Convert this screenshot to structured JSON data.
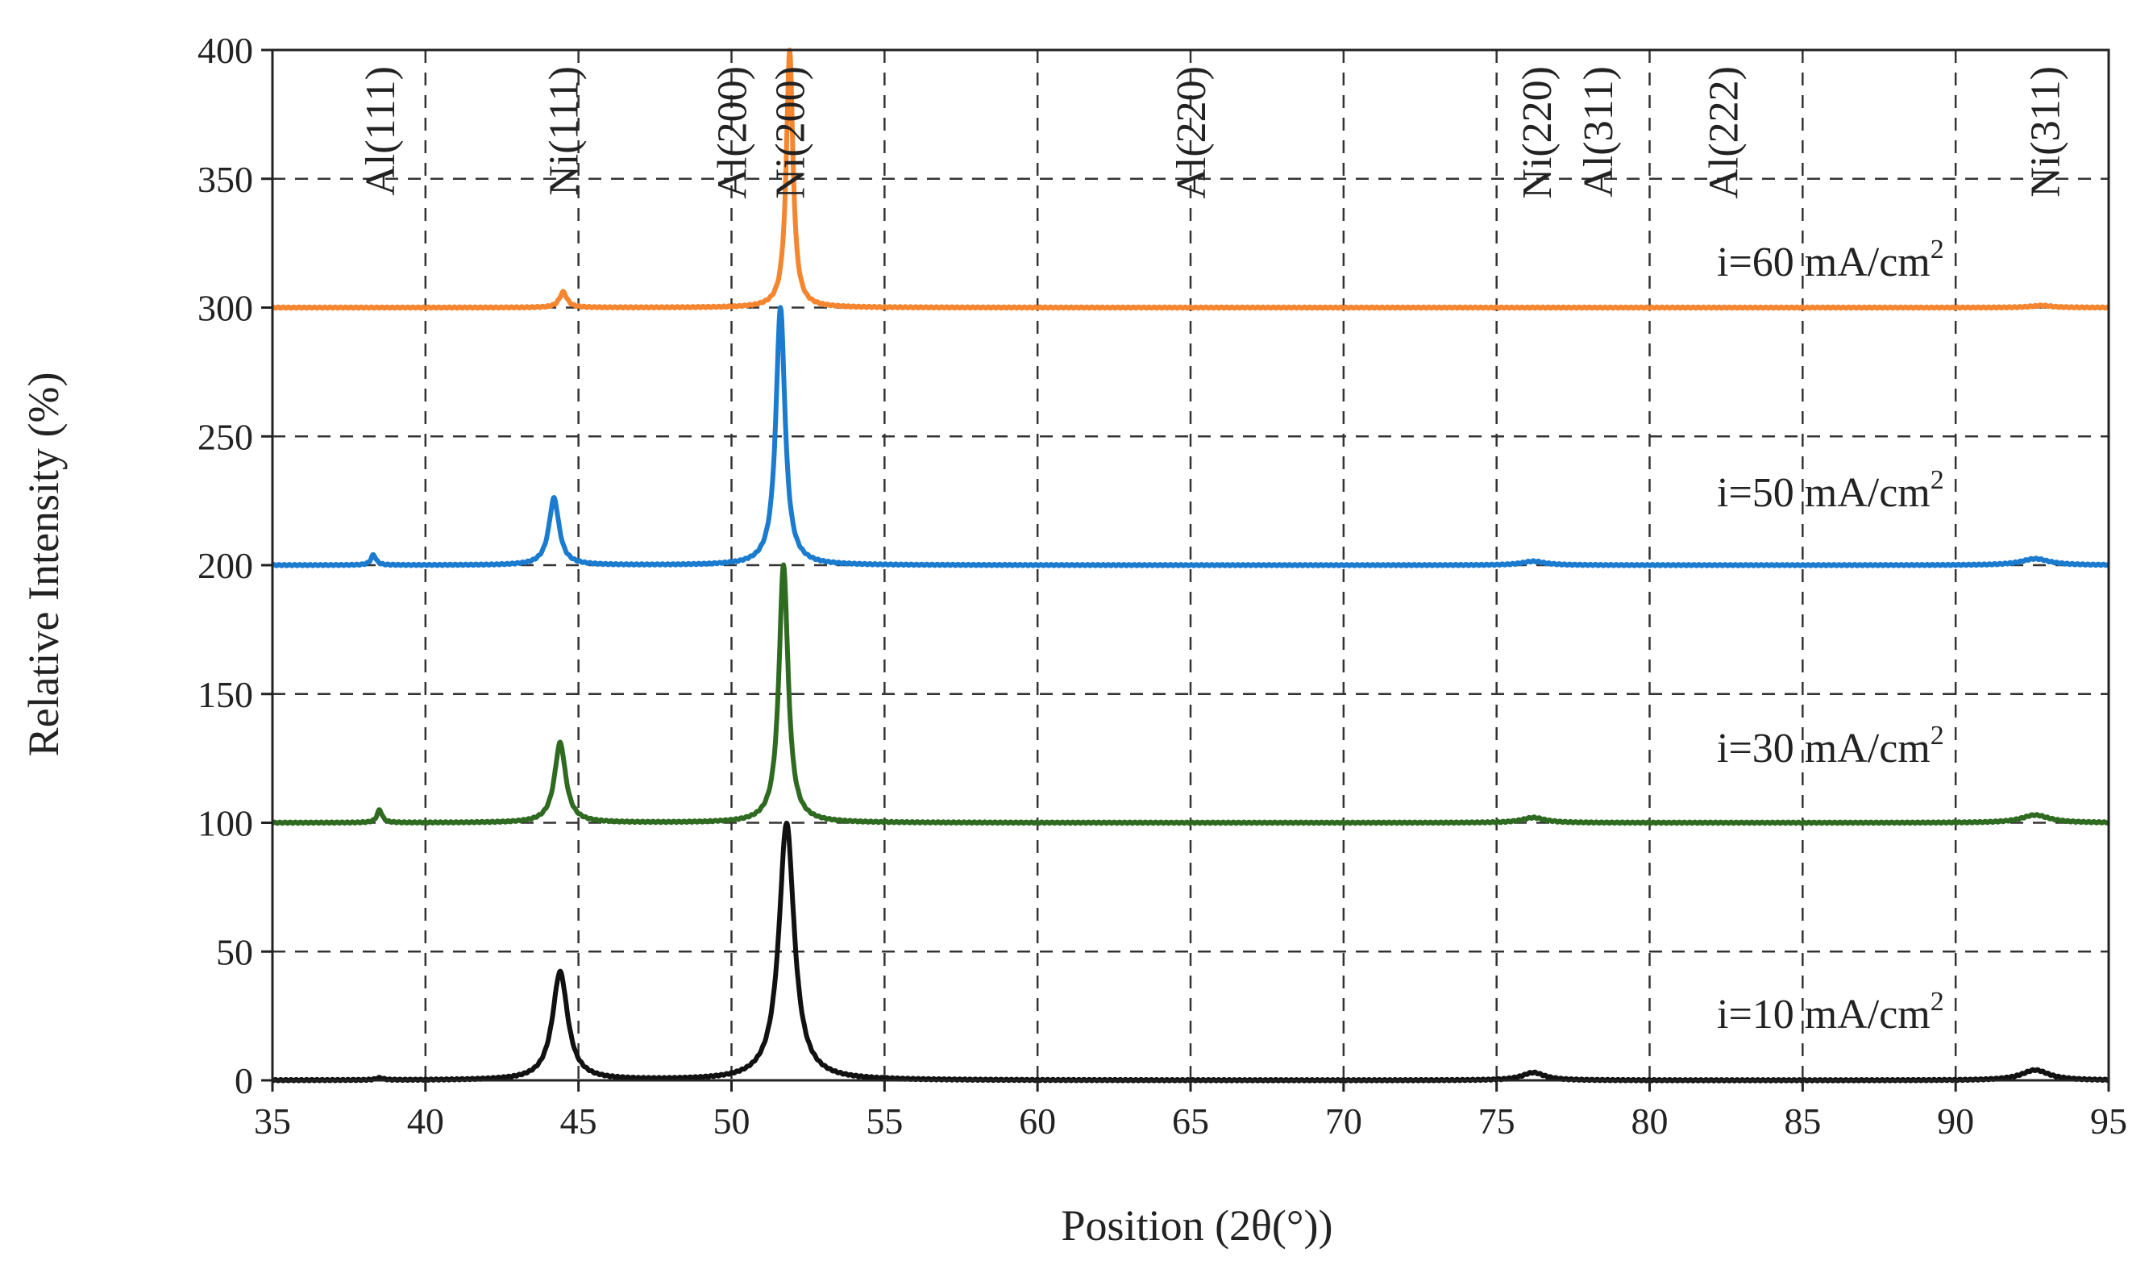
{
  "chart_data": {
    "type": "line",
    "title": "",
    "xlabel": "Position (2θ(°))",
    "ylabel": "Relative  Intensity (%)",
    "xlim": [
      35,
      95
    ],
    "ylim": [
      0,
      400
    ],
    "xticks": [
      35,
      40,
      45,
      50,
      55,
      60,
      65,
      70,
      75,
      80,
      85,
      90,
      95
    ],
    "yticks": [
      0,
      50,
      100,
      150,
      200,
      250,
      300,
      350,
      400
    ],
    "grid": "dashed",
    "reference_lines": [
      {
        "label": "Al(111)",
        "x": 38.5
      },
      {
        "label": "Ni(111)",
        "x": 44.5
      },
      {
        "label": "Al(200)",
        "x": 50.0
      },
      {
        "label": "Ni(200)",
        "x": 51.9
      },
      {
        "label": "Al(220)",
        "x": 65.0
      },
      {
        "label": "Ni(220)",
        "x": 76.3
      },
      {
        "label": "Al(311)",
        "x": 78.3
      },
      {
        "label": "Al(222)",
        "x": 82.4
      },
      {
        "label": "Ni(311)",
        "x": 92.9
      }
    ],
    "series": [
      {
        "name": "i=10 mA/cm2",
        "label_main": "i=10 mA/cm",
        "label_sup": "2",
        "color": "#111111",
        "baseline": 0,
        "peaks": [
          {
            "x": 38.5,
            "h": 0.8,
            "w": 0.15
          },
          {
            "x": 44.4,
            "h": 42,
            "w": 0.3
          },
          {
            "x": 51.8,
            "h": 100,
            "w": 0.3
          },
          {
            "x": 76.2,
            "h": 3,
            "w": 0.45
          },
          {
            "x": 92.6,
            "h": 4,
            "w": 0.55
          }
        ]
      },
      {
        "name": "i=30 mA/cm2",
        "label_main": "i=30 mA/cm",
        "label_sup": "2",
        "color": "#2e6b21",
        "baseline": 100,
        "peaks": [
          {
            "x": 38.5,
            "h": 5,
            "w": 0.1
          },
          {
            "x": 44.4,
            "h": 31,
            "w": 0.22
          },
          {
            "x": 51.7,
            "h": 100,
            "w": 0.18
          },
          {
            "x": 76.2,
            "h": 2,
            "w": 0.45
          },
          {
            "x": 92.6,
            "h": 3,
            "w": 0.55
          }
        ]
      },
      {
        "name": "i=50 mA/cm2",
        "label_main": "i=50 mA/cm",
        "label_sup": "2",
        "color": "#1a7bcf",
        "baseline": 200,
        "peaks": [
          {
            "x": 38.3,
            "h": 4,
            "w": 0.1
          },
          {
            "x": 44.2,
            "h": 26,
            "w": 0.2
          },
          {
            "x": 51.6,
            "h": 100,
            "w": 0.18
          },
          {
            "x": 76.2,
            "h": 1.5,
            "w": 0.45
          },
          {
            "x": 92.6,
            "h": 2.5,
            "w": 0.55
          }
        ]
      },
      {
        "name": "i=60 mA/cm2",
        "label_main": "i=60 mA/cm",
        "label_sup": "2",
        "color": "#f5852e",
        "baseline": 300,
        "peaks": [
          {
            "x": 44.5,
            "h": 6,
            "w": 0.15
          },
          {
            "x": 51.9,
            "h": 100,
            "w": 0.13
          },
          {
            "x": 92.8,
            "h": 0.8,
            "w": 0.4
          }
        ]
      }
    ]
  }
}
